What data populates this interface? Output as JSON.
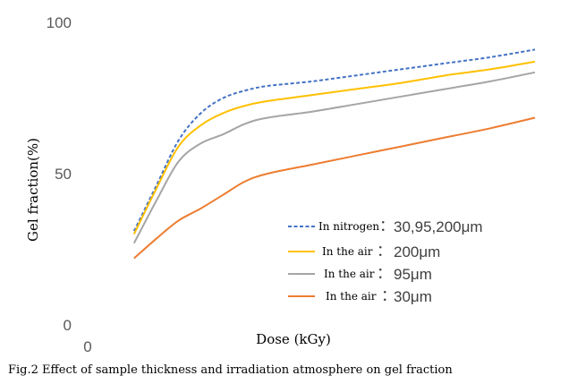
{
  "chart_data": {
    "type": "line",
    "title": "",
    "xlabel": "Dose (kGy)",
    "ylabel": "Gel fraction(%)",
    "caption": "Fig.2 Effect of sample thickness and irradiation atmosphere on gel fraction",
    "x_tick_labels": [
      "0"
    ],
    "y_tick_labels": [
      "100",
      "50",
      "0"
    ],
    "ylim": [
      0,
      100
    ],
    "grid": false,
    "legend_position": "bottom-right",
    "x": [
      0.1,
      0.15,
      0.2,
      0.25,
      0.3,
      0.35,
      0.4,
      0.5,
      0.6,
      0.7,
      0.8,
      0.9,
      1.0
    ],
    "series": [
      {
        "name": "In nitrogen",
        "condition": "30,95,200μm",
        "color": "#4472C4",
        "dash": true,
        "values": [
          31,
          46,
          61,
          70,
          75,
          77.5,
          79,
          80.5,
          82.5,
          84.5,
          86.5,
          88.5,
          91
        ]
      },
      {
        "name": "In the air",
        "condition": "200μm",
        "color": "#FFC000",
        "dash": false,
        "values": [
          30,
          45,
          59,
          66,
          70,
          72.5,
          74,
          76,
          78,
          80,
          82.5,
          84.5,
          87
        ]
      },
      {
        "name": "In the air",
        "condition": "95μm",
        "color": "#A5A5A5",
        "dash": false,
        "values": [
          27,
          41,
          54,
          60,
          63,
          66.5,
          68.5,
          70.5,
          73,
          75.5,
          78,
          80.5,
          83.5
        ]
      },
      {
        "name": "In the air",
        "condition": "30μm",
        "color": "#ED7D31",
        "dash": false,
        "values": [
          22,
          28.5,
          34.5,
          38.5,
          43,
          47.5,
          50,
          53,
          56,
          59,
          62,
          65,
          68.5
        ]
      }
    ]
  }
}
